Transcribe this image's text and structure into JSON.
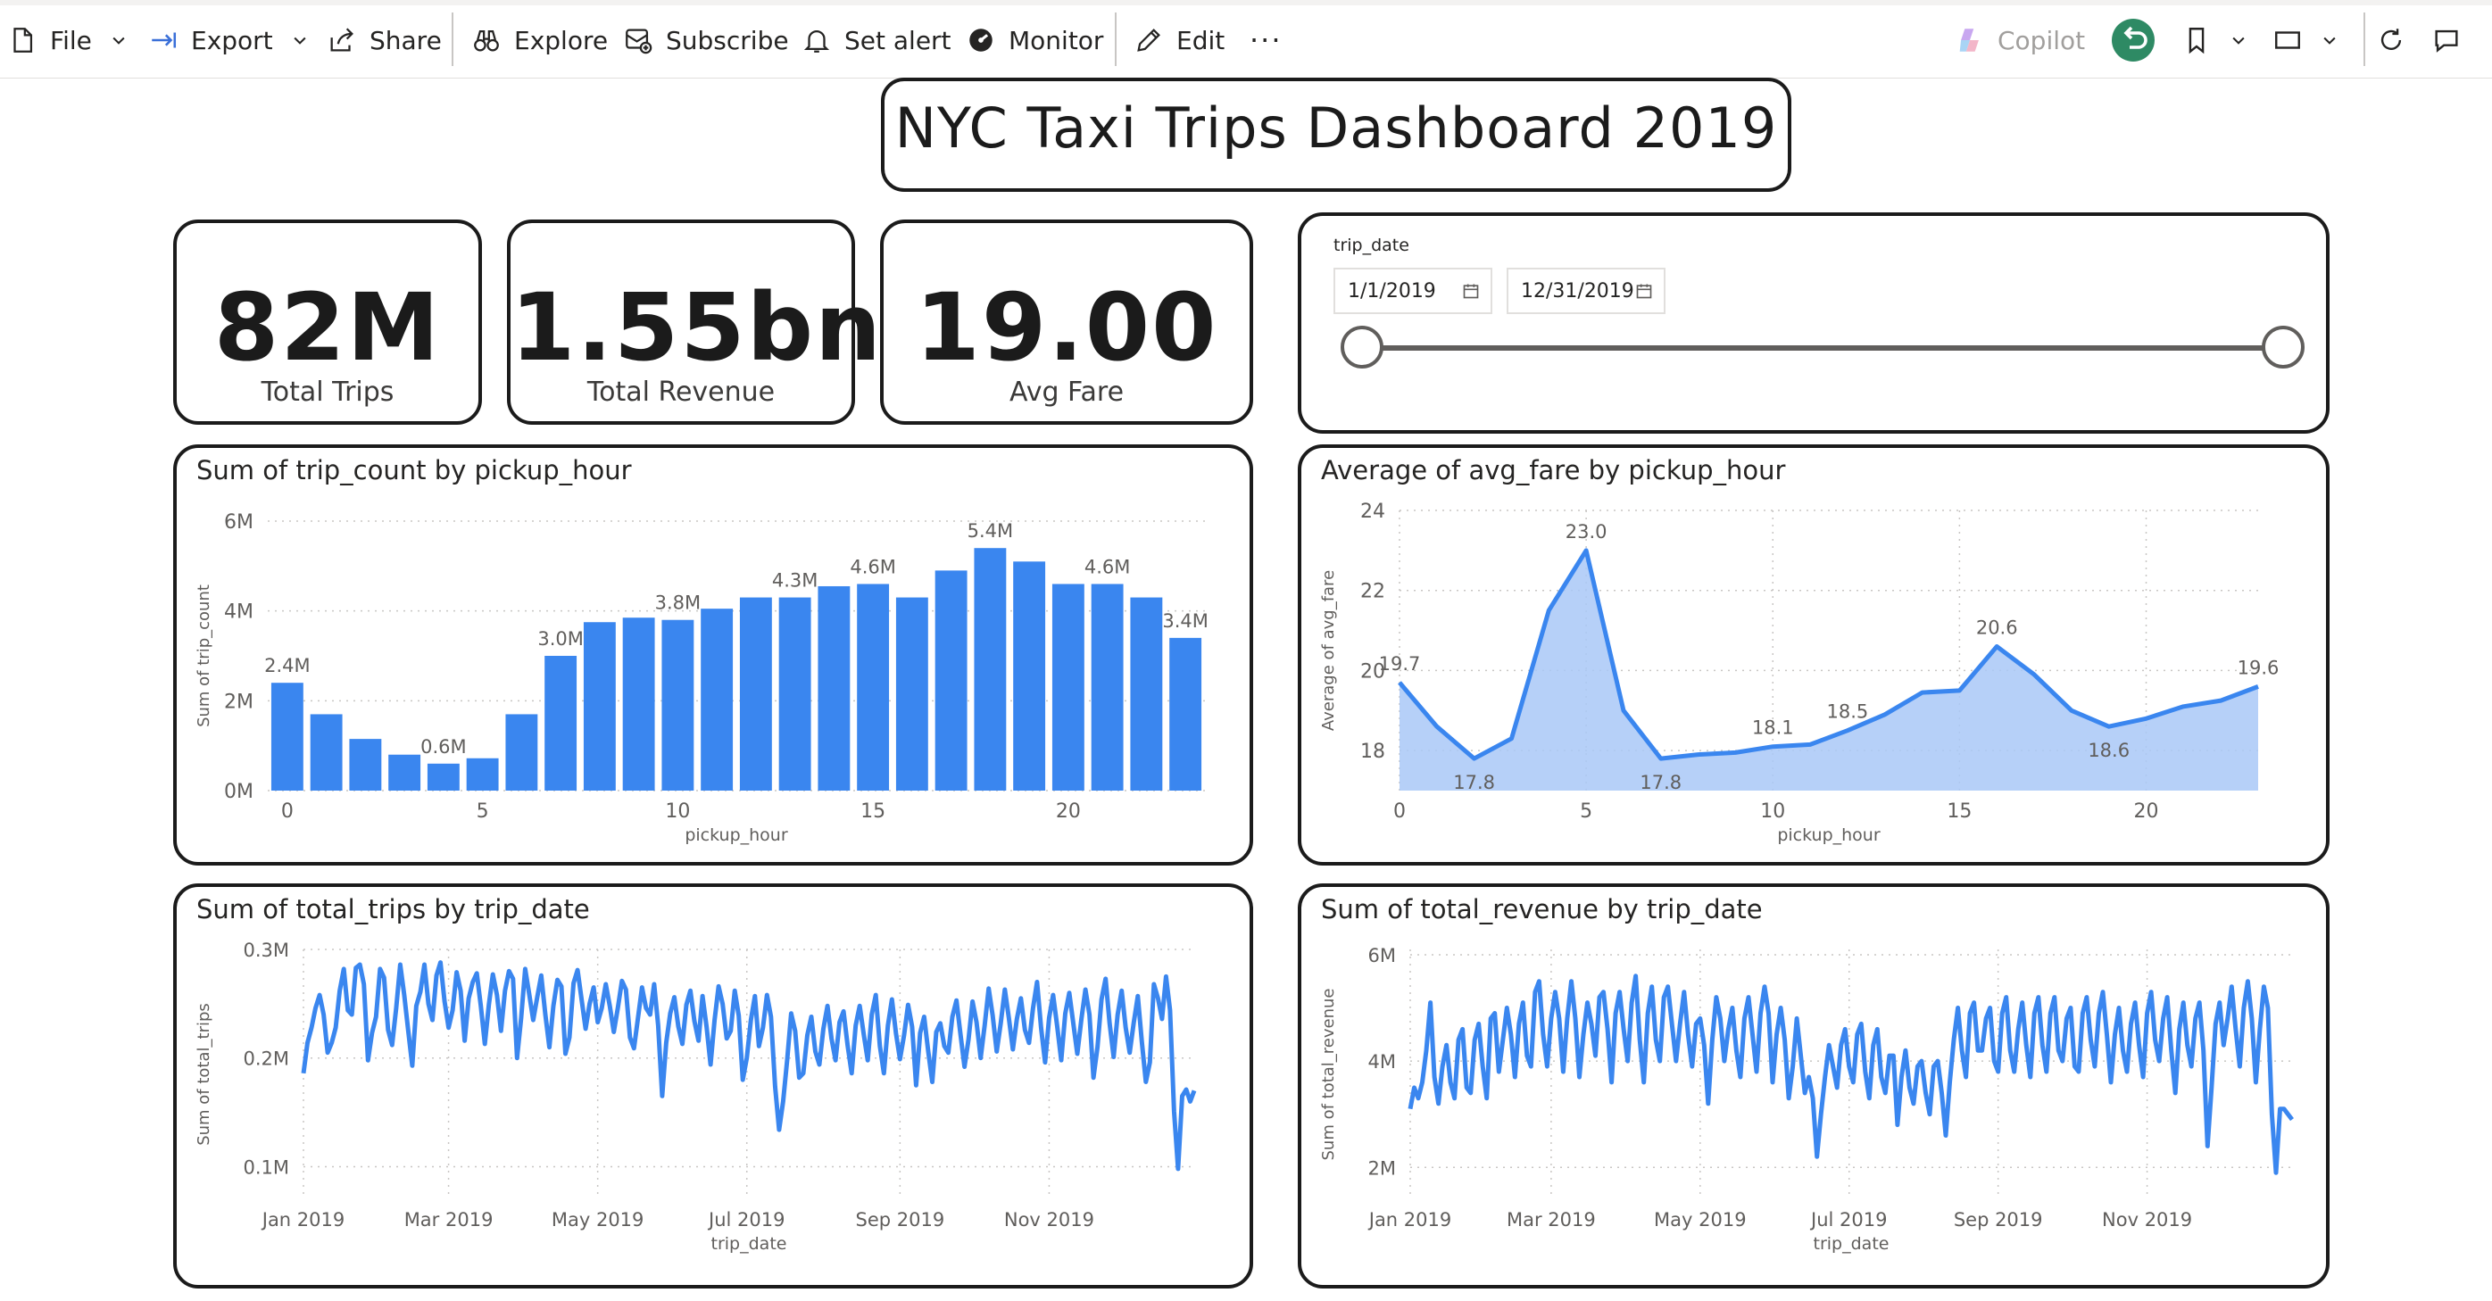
{
  "toolbar": {
    "file": "File",
    "export": "Export",
    "share": "Share",
    "explore": "Explore",
    "subscribe": "Subscribe",
    "set_alert": "Set alert",
    "monitor": "Monitor",
    "edit": "Edit",
    "more": "···",
    "copilot": "Copilot"
  },
  "dashboard_title": "NYC Taxi Trips Dashboard 2019",
  "kpis": [
    {
      "value": "82M",
      "label": "Total Trips"
    },
    {
      "value": "1.55bn",
      "label": "Total Revenue"
    },
    {
      "value": "19.00",
      "label": "Avg Fare"
    }
  ],
  "slicer": {
    "label": "trip_date",
    "start": "1/1/2019",
    "end": "12/31/2019",
    "range_fraction": [
      0,
      1
    ]
  },
  "colors": {
    "series": "#3a86ef",
    "area_fill": "#a9c8f7",
    "tile_border": "#1b1b1b",
    "grid": "#c8c6c4"
  },
  "chart_data": [
    {
      "type": "bar",
      "title": "Sum of trip_count by pickup_hour",
      "xlabel": "pickup_hour",
      "ylabel": "Sum of trip_count",
      "x": [
        0,
        1,
        2,
        3,
        4,
        5,
        6,
        7,
        8,
        9,
        10,
        11,
        12,
        13,
        14,
        15,
        16,
        17,
        18,
        19,
        20,
        21,
        22,
        23
      ],
      "values": [
        2.4,
        1.7,
        1.15,
        0.8,
        0.6,
        0.72,
        1.7,
        3.0,
        3.75,
        3.85,
        3.8,
        4.05,
        4.3,
        4.3,
        4.55,
        4.6,
        4.3,
        4.9,
        5.4,
        5.1,
        4.6,
        4.6,
        4.3,
        3.4
      ],
      "data_labels": {
        "0": "2.4M",
        "4": "0.6M",
        "7": "3.0M",
        "10": "3.8M",
        "13": "4.3M",
        "15": "4.6M",
        "18": "5.4M",
        "21": "4.6M",
        "23": "3.4M"
      },
      "x_ticks": [
        "0",
        "5",
        "10",
        "15",
        "20"
      ],
      "y_ticks": [
        "0M",
        "2M",
        "4M",
        "6M"
      ],
      "ylim": [
        0,
        6
      ],
      "unit": "M",
      "grid": true
    },
    {
      "type": "area",
      "title": "Average of avg_fare by pickup_hour",
      "xlabel": "pickup_hour",
      "ylabel": "Average of avg_fare",
      "x": [
        0,
        1,
        2,
        3,
        4,
        5,
        6,
        7,
        8,
        9,
        10,
        11,
        12,
        13,
        14,
        15,
        16,
        17,
        18,
        19,
        20,
        21,
        22,
        23
      ],
      "values": [
        19.7,
        18.6,
        17.8,
        18.3,
        21.5,
        23.0,
        19.0,
        17.8,
        17.9,
        17.95,
        18.1,
        18.15,
        18.5,
        18.9,
        19.45,
        19.5,
        20.6,
        19.9,
        19.0,
        18.6,
        18.8,
        19.1,
        19.25,
        19.6
      ],
      "data_labels": {
        "0": "19.7",
        "2": "17.8",
        "5": "23.0",
        "7": "17.8",
        "10": "18.1",
        "12": "18.5",
        "16": "20.6",
        "19": "18.6",
        "23": "19.6"
      },
      "x_ticks": [
        "0",
        "5",
        "10",
        "15",
        "20"
      ],
      "y_ticks": [
        "18",
        "20",
        "22",
        "24"
      ],
      "ylim": [
        17,
        24
      ],
      "grid": true
    },
    {
      "type": "line",
      "title": "Sum of total_trips by trip_date",
      "xlabel": "trip_date",
      "ylabel": "Sum of total_trips",
      "x_ticks": [
        "Jan 2019",
        "Mar 2019",
        "May 2019",
        "Jul 2019",
        "Sep 2019",
        "Nov 2019"
      ],
      "y_ticks": [
        "0.1M",
        "0.2M",
        "0.3M"
      ],
      "ylim": [
        0.07,
        0.3
      ],
      "values_in_thousands": [
        186,
        214,
        228,
        246,
        258,
        240,
        205,
        214,
        228,
        262,
        282,
        244,
        240,
        283,
        286,
        268,
        198,
        223,
        238,
        282,
        274,
        226,
        212,
        246,
        286,
        258,
        225,
        193,
        248,
        261,
        286,
        250,
        235,
        276,
        288,
        252,
        228,
        244,
        279,
        262,
        216,
        255,
        270,
        278,
        248,
        213,
        249,
        277,
        258,
        225,
        262,
        280,
        273,
        200,
        237,
        282,
        259,
        235,
        256,
        276,
        240,
        210,
        248,
        272,
        266,
        204,
        219,
        269,
        281,
        254,
        227,
        250,
        265,
        233,
        246,
        268,
        248,
        224,
        246,
        271,
        263,
        219,
        209,
        237,
        265,
        246,
        240,
        268,
        230,
        165,
        214,
        241,
        256,
        229,
        213,
        249,
        262,
        234,
        216,
        257,
        229,
        194,
        235,
        266,
        250,
        218,
        225,
        262,
        239,
        180,
        200,
        235,
        257,
        211,
        228,
        258,
        238,
        174,
        134,
        160,
        198,
        241,
        225,
        182,
        186,
        221,
        238,
        206,
        194,
        227,
        248,
        218,
        198,
        233,
        243,
        212,
        186,
        230,
        248,
        222,
        198,
        240,
        258,
        211,
        186,
        230,
        254,
        223,
        199,
        221,
        249,
        229,
        175,
        223,
        238,
        206,
        178,
        224,
        232,
        211,
        205,
        238,
        253,
        222,
        192,
        217,
        252,
        233,
        200,
        230,
        264,
        239,
        206,
        232,
        263,
        237,
        208,
        236,
        255,
        226,
        214,
        246,
        270,
        228,
        196,
        237,
        258,
        229,
        198,
        241,
        260,
        232,
        204,
        236,
        263,
        240,
        182,
        210,
        254,
        273,
        232,
        201,
        240,
        262,
        228,
        205,
        233,
        257,
        215,
        178,
        196,
        268,
        255,
        236,
        275,
        244,
        151,
        98,
        165,
        171,
        160,
        170
      ]
    },
    {
      "type": "line",
      "title": "Sum of total_revenue by trip_date",
      "xlabel": "trip_date",
      "ylabel": "Sum of total_revenue",
      "x_ticks": [
        "Jan 2019",
        "Mar 2019",
        "May 2019",
        "Jul 2019",
        "Sep 2019",
        "Nov 2019"
      ],
      "y_ticks": [
        "2M",
        "4M",
        "6M"
      ],
      "ylim": [
        1.4,
        6.1
      ],
      "values_in_millions": [
        3.1,
        3.5,
        3.3,
        3.6,
        4.2,
        5.1,
        3.7,
        3.2,
        3.9,
        4.3,
        3.6,
        3.3,
        4.4,
        4.6,
        3.5,
        3.4,
        4.4,
        4.7,
        3.9,
        3.3,
        4.8,
        4.9,
        3.8,
        4.4,
        5.0,
        4.5,
        3.7,
        4.7,
        5.1,
        4.1,
        3.9,
        5.3,
        5.5,
        4.5,
        3.9,
        4.8,
        5.3,
        4.8,
        3.8,
        4.8,
        5.5,
        4.8,
        3.7,
        4.5,
        5.1,
        4.7,
        4.1,
        5.2,
        5.3,
        4.6,
        3.6,
        4.9,
        5.3,
        4.6,
        4.0,
        5.1,
        5.6,
        4.4,
        3.6,
        4.9,
        5.4,
        4.4,
        4.0,
        5.2,
        5.4,
        4.7,
        4.0,
        4.7,
        5.3,
        4.5,
        3.9,
        4.7,
        4.8,
        4.3,
        3.2,
        4.4,
        5.2,
        4.8,
        4.0,
        4.6,
        5.0,
        4.2,
        3.7,
        4.8,
        5.2,
        4.5,
        3.8,
        4.9,
        5.4,
        4.9,
        3.6,
        4.5,
        5.0,
        4.4,
        3.3,
        3.9,
        4.8,
        4.1,
        3.4,
        3.7,
        3.3,
        2.2,
        3.0,
        3.7,
        4.3,
        3.9,
        3.5,
        4.3,
        4.6,
        3.9,
        3.6,
        4.5,
        4.7,
        3.8,
        3.3,
        4.3,
        4.6,
        3.7,
        3.4,
        4.1,
        4.1,
        2.8,
        3.7,
        4.2,
        3.5,
        3.2,
        3.9,
        4.0,
        3.4,
        3.0,
        3.9,
        4.0,
        3.4,
        2.6,
        3.6,
        4.4,
        5.0,
        4.2,
        3.7,
        4.9,
        5.1,
        4.2,
        4.2,
        4.8,
        5.0,
        4.0,
        3.8,
        4.9,
        5.2,
        4.2,
        3.8,
        4.6,
        5.1,
        4.3,
        3.7,
        4.9,
        5.2,
        4.3,
        3.8,
        4.9,
        5.2,
        4.2,
        4.0,
        4.8,
        5.0,
        3.9,
        3.8,
        4.9,
        5.2,
        4.4,
        3.9,
        4.9,
        5.3,
        4.5,
        3.6,
        4.5,
        5.0,
        4.2,
        3.8,
        4.7,
        5.1,
        4.3,
        3.7,
        4.9,
        5.3,
        4.4,
        4.0,
        4.8,
        5.2,
        4.2,
        3.4,
        4.6,
        5.1,
        4.3,
        3.9,
        4.8,
        5.1,
        4.2,
        2.4,
        3.5,
        4.7,
        5.1,
        4.3,
        4.8,
        5.4,
        4.6,
        3.9,
        5.0,
        5.5,
        4.8,
        3.6,
        4.6,
        5.4,
        5.0,
        3.0,
        1.9,
        3.1,
        3.1,
        3.0,
        2.9
      ]
    }
  ]
}
